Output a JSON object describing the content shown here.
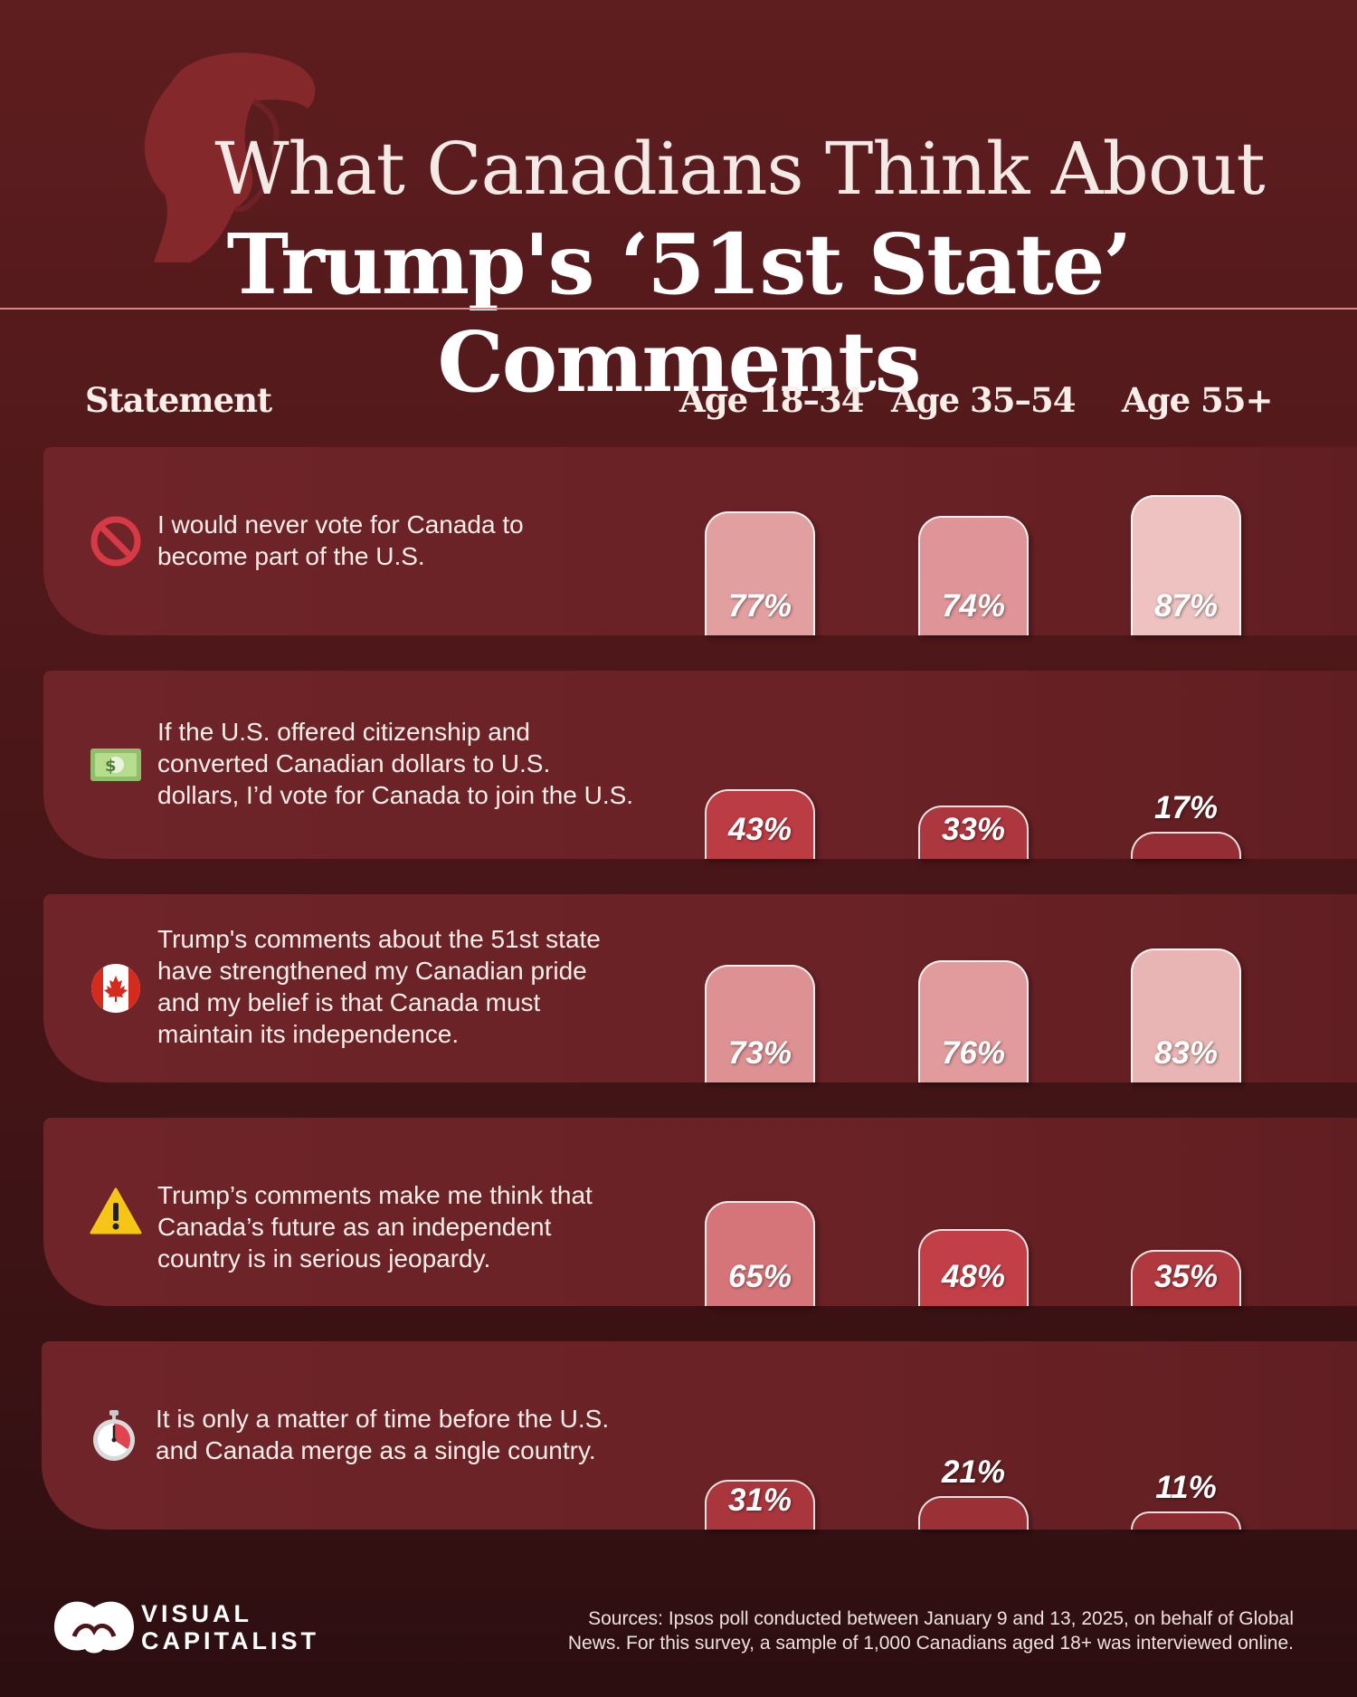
{
  "title_line1": "What Canadians Think About",
  "title_line2": "Trump's ‘51st State’ Comments",
  "headers": {
    "statement": "Statement",
    "age_groups": [
      "Age 18–34",
      "Age 35–54",
      "Age 55+"
    ]
  },
  "rows": [
    {
      "icon": "prohibited-icon",
      "statement": [
        "I would never vote for Canada to",
        "become part of the U.S."
      ],
      "labels": [
        "77%",
        "74%",
        "87%"
      ]
    },
    {
      "icon": "dollar-banknote-icon",
      "statement": [
        "If the U.S. offered citizenship and",
        "converted Canadian dollars to U.S.",
        "dollars, I’d vote for Canada to join the U.S."
      ],
      "labels": [
        "43%",
        "33%",
        "17%"
      ]
    },
    {
      "icon": "canada-flag-icon",
      "statement": [
        "Trump's comments about the 51st state",
        "have strengthened my Canadian pride",
        "and my belief is that Canada must",
        "maintain its independence."
      ],
      "labels": [
        "73%",
        "76%",
        "83%"
      ]
    },
    {
      "icon": "warning-icon",
      "statement": [
        "Trump’s comments make me think that",
        "Canada’s future as an independent",
        "country is in serious jeopardy."
      ],
      "labels": [
        "65%",
        "48%",
        "35%"
      ]
    },
    {
      "icon": "stopwatch-icon",
      "statement": [
        "It is only a matter of time before the U.S.",
        "and Canada merge as a single country."
      ],
      "labels": [
        "31%",
        "21%",
        "11%"
      ]
    }
  ],
  "chart_data": {
    "type": "bar",
    "categories": [
      "Age 18–34",
      "Age 35–54",
      "Age 55+"
    ],
    "units": "%",
    "series": [
      {
        "name": "I would never vote for Canada to become part of the U.S.",
        "values": [
          77,
          74,
          87
        ]
      },
      {
        "name": "If the U.S. offered citizenship and converted Canadian dollars to U.S. dollars, I’d vote for Canada to join the U.S.",
        "values": [
          43,
          33,
          17
        ]
      },
      {
        "name": "Trump's comments about the 51st state have strengthened my Canadian pride and my belief is that Canada must maintain its independence.",
        "values": [
          73,
          76,
          83
        ]
      },
      {
        "name": "Trump’s comments make me think that Canada’s future as an independent country is in serious jeopardy.",
        "values": [
          65,
          48,
          35
        ]
      },
      {
        "name": "It is only a matter of time before the U.S. and Canada merge as a single country.",
        "values": [
          31,
          21,
          11
        ]
      }
    ]
  },
  "footer": {
    "logo_line1": "VISUAL",
    "logo_line2": "CAPITALIST",
    "source_line1": "Sources: Ipsos poll conducted between January 9 and 13, 2025, on behalf of Global",
    "source_line2": "News. For this survey, a sample of 1,000 Canadians aged 18+ was interviewed online."
  },
  "colors": {
    "background": "#4d1719",
    "row_band": "#6a2226",
    "bar_high": "#efc6c5",
    "bar_low": "#8a2a30",
    "accent_red": "#c8363f"
  }
}
